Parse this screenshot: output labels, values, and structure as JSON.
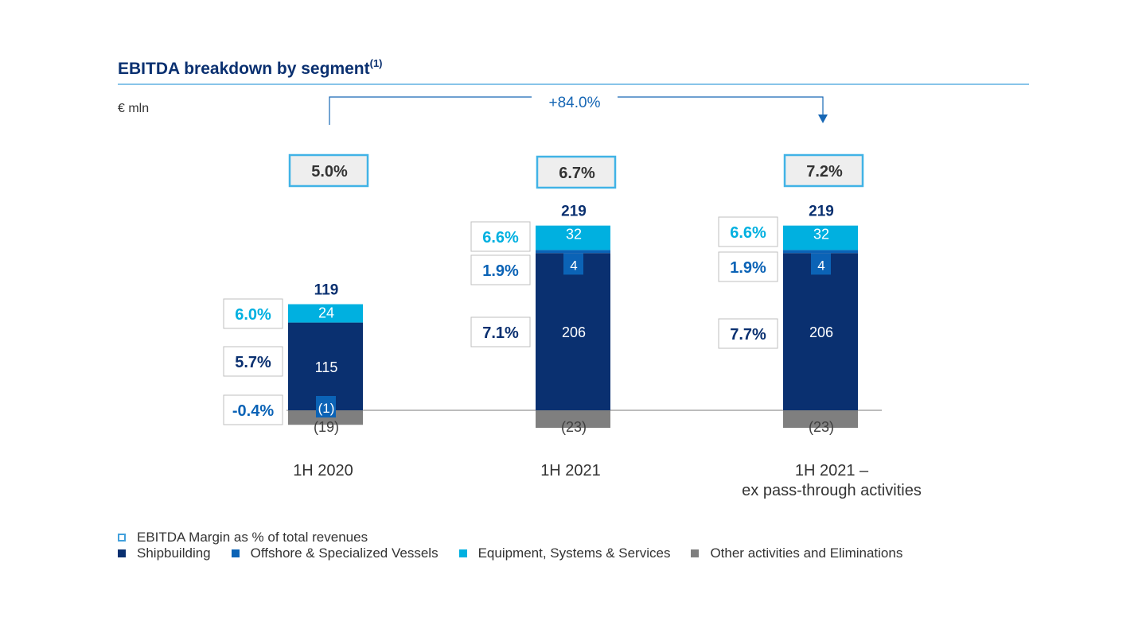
{
  "title": "EBITDA breakdown by segment",
  "title_sup": "(1)",
  "unit_label": "€ mln",
  "growth_label": "+84.0%",
  "colors": {
    "shipbuilding": "#0a3070",
    "offshore": "#0b63b6",
    "equipment": "#00b0e0",
    "other": "#7f7f7f",
    "margin_box": "#41b3e6",
    "title": "#0a3070",
    "growth": "#1767b5",
    "rule": "#41a0dc"
  },
  "legend": {
    "margin": "EBITDA Margin as % of total revenues",
    "series": [
      "Shipbuilding",
      "Offshore & Specialized Vessels",
      "Equipment, Systems & Services",
      "Other activities and Eliminations"
    ]
  },
  "chart_data": {
    "type": "bar",
    "stacked": true,
    "categories": [
      "1H 2020",
      "1H 2021",
      "1H 2021 –\nex pass-through activities"
    ],
    "series": [
      {
        "name": "Shipbuilding",
        "values": [
          115,
          206,
          206
        ],
        "labels": [
          "115",
          "206",
          "206"
        ],
        "margins": [
          "5.7%",
          "7.1%",
          "7.7%"
        ]
      },
      {
        "name": "Offshore & Specialized Vessels",
        "values": [
          -1,
          4,
          4
        ],
        "labels": [
          "(1)",
          "4",
          "4"
        ],
        "margins": [
          "-0.4%",
          "1.9%",
          "1.9%"
        ]
      },
      {
        "name": "Equipment, Systems & Services",
        "values": [
          24,
          32,
          32
        ],
        "labels": [
          "24",
          "32",
          "32"
        ],
        "margins": [
          "6.0%",
          "6.6%",
          "6.6%"
        ]
      },
      {
        "name": "Other activities and Eliminations",
        "values": [
          -19,
          -23,
          -23
        ],
        "labels": [
          "(19)",
          "(23)",
          "(23)"
        ]
      }
    ],
    "totals": [
      "119",
      "219",
      "219"
    ],
    "ebitda_margin": [
      "5.0%",
      "6.7%",
      "7.2%"
    ]
  }
}
